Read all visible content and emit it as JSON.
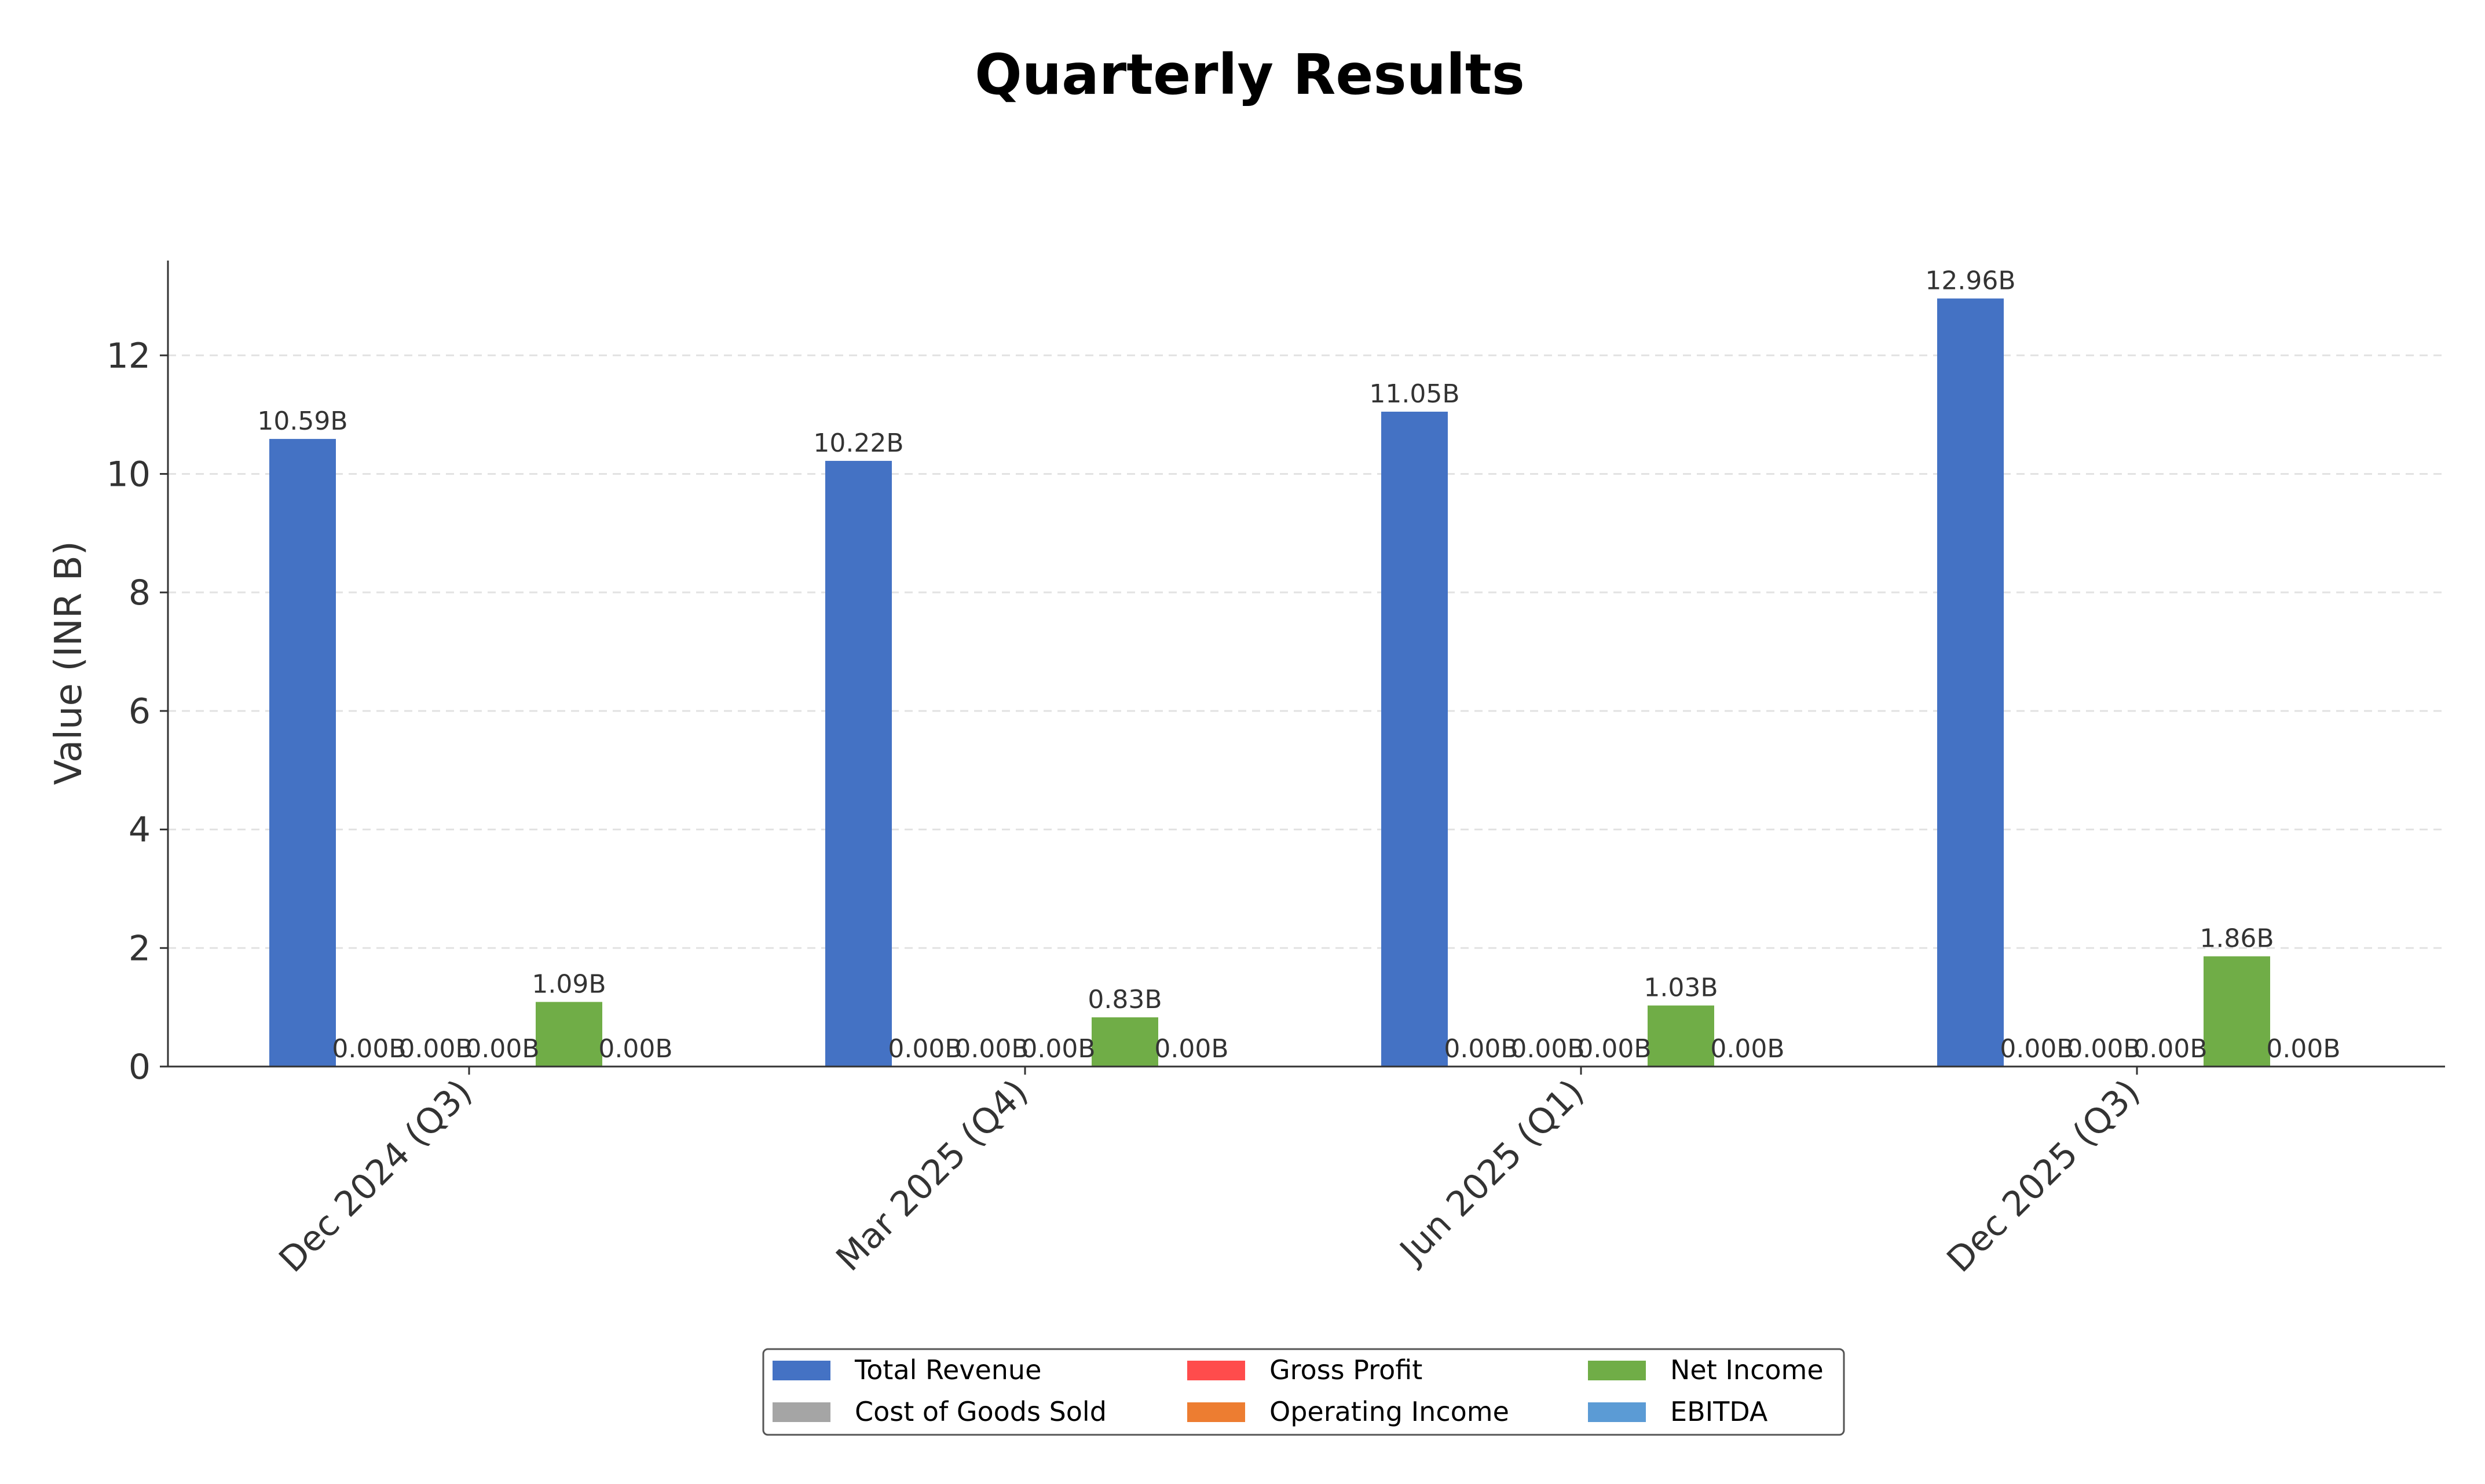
{
  "chart_data": {
    "type": "bar",
    "title": "Quarterly Results",
    "xlabel": "",
    "ylabel": "Value (INR B)",
    "ylim": [
      0,
      13.6
    ],
    "yticks": [
      0,
      2,
      4,
      6,
      8,
      10,
      12
    ],
    "grid": "y, dashed",
    "legend_position": "bottom-center",
    "categories": [
      "Dec 2024 (Q3)",
      "Mar 2025 (Q4)",
      "Jun 2025 (Q1)",
      "Dec 2025 (Q3)"
    ],
    "series": [
      {
        "name": "Total Revenue",
        "color": "#4472C4",
        "values": [
          10.59,
          10.22,
          11.05,
          12.96
        ],
        "labels": [
          "10.59B",
          "10.22B",
          "11.05B",
          "12.96B"
        ]
      },
      {
        "name": "Cost of Goods Sold",
        "color": "#A5A5A5",
        "values": [
          0,
          0,
          0,
          0
        ],
        "labels": [
          "0.00B",
          "0.00B",
          "0.00B",
          "0.00B"
        ]
      },
      {
        "name": "Gross Profit",
        "color": "#FF4C4C",
        "values": [
          0,
          0,
          0,
          0
        ],
        "labels": [
          "0.00B",
          "0.00B",
          "0.00B",
          "0.00B"
        ]
      },
      {
        "name": "Operating Income",
        "color": "#ED7D31",
        "values": [
          0,
          0,
          0,
          0
        ],
        "labels": [
          "0.00B",
          "0.00B",
          "0.00B",
          "0.00B"
        ]
      },
      {
        "name": "Net Income",
        "color": "#70AD47",
        "values": [
          1.09,
          0.83,
          1.03,
          1.86
        ],
        "labels": [
          "1.09B",
          "0.83B",
          "1.03B",
          "1.86B"
        ]
      },
      {
        "name": "EBITDA",
        "color": "#5B9BD5",
        "values": [
          0,
          0,
          0,
          0
        ],
        "labels": [
          "0.00B",
          "0.00B",
          "0.00B",
          "0.00B"
        ]
      }
    ],
    "legend_order": [
      "Total Revenue",
      "Cost of Goods Sold",
      "Gross Profit",
      "Operating Income",
      "Net Income",
      "EBITDA"
    ]
  }
}
